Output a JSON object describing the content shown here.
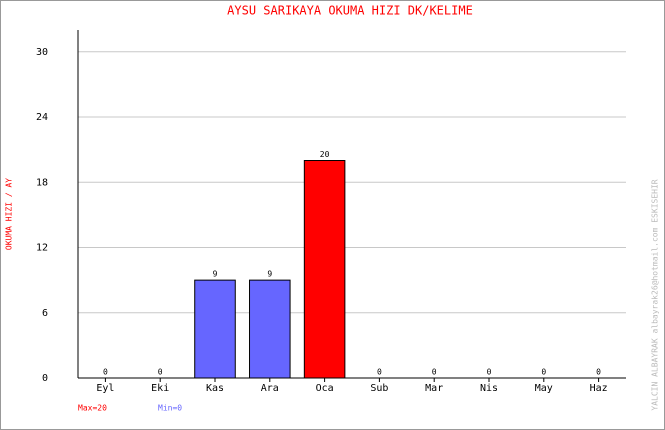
{
  "chart_data": {
    "type": "bar",
    "title": "AYSU SARIKAYA   OKUMA HIZI  DK/KELIME",
    "y_label": "OKUMA HIZI / AY",
    "side_note": "YALCIN ALBAYRAK   albayrak26@hotmail.com   ESKISEHIR",
    "max_label": "Max=20",
    "min_label": "Min=0",
    "categories": [
      "Eyl",
      "Eki",
      "Kas",
      "Ara",
      "Oca",
      "Sub",
      "Mar",
      "Nis",
      "May",
      "Haz"
    ],
    "values": [
      0,
      0,
      9,
      9,
      20,
      0,
      0,
      0,
      0,
      0
    ],
    "colors": [
      "#6666ff",
      "#6666ff",
      "#6666ff",
      "#6666ff",
      "#ff0000",
      "#6666ff",
      "#6666ff",
      "#6666ff",
      "#6666ff",
      "#6666ff"
    ],
    "ylim": [
      0,
      32
    ],
    "yticks": [
      0,
      6,
      12,
      18,
      24,
      30
    ],
    "grid": true
  }
}
